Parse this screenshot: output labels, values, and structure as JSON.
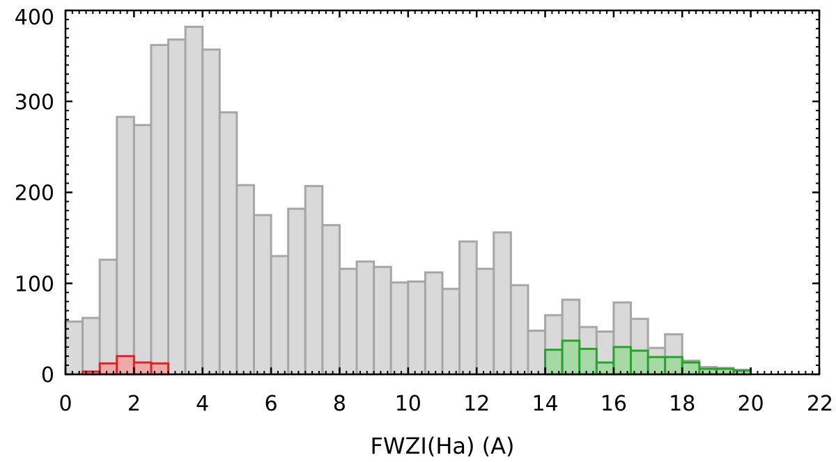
{
  "chart_data": {
    "type": "bar",
    "xlabel": "FWZI(Ha) (A)",
    "ylabel": "",
    "xlim": [
      0,
      22
    ],
    "ylim": [
      0,
      400
    ],
    "xticks": [
      "0",
      "2",
      "4",
      "6",
      "8",
      "10",
      "12",
      "14",
      "16",
      "18",
      "20",
      "22"
    ],
    "yticks": [
      "0",
      "100",
      "200",
      "300",
      "400"
    ],
    "bin_width": 0.5,
    "grid": false,
    "series": [
      {
        "color": "#d9d9d9",
        "edge_color": "#a6a6a6",
        "x": [
          0.0,
          0.5,
          1.0,
          1.5,
          2.0,
          2.5,
          3.0,
          3.5,
          4.0,
          4.5,
          5.0,
          5.5,
          6.0,
          6.5,
          7.0,
          7.5,
          8.0,
          8.5,
          9.0,
          9.5,
          10.0,
          10.5,
          11.0,
          11.5,
          12.0,
          12.5,
          13.0,
          13.5,
          14.0,
          14.5,
          15.0,
          15.5,
          16.0,
          16.5,
          17.0,
          17.5,
          18.0,
          18.5,
          19.0,
          19.5
        ],
        "values": [
          58,
          62,
          126,
          283,
          274,
          362,
          368,
          382,
          357,
          288,
          208,
          175,
          130,
          182,
          207,
          164,
          116,
          124,
          118,
          101,
          102,
          112,
          94,
          146,
          116,
          156,
          98,
          48,
          65,
          82,
          52,
          47,
          79,
          61,
          29,
          44,
          15,
          8,
          7,
          5
        ]
      },
      {
        "color": "#f0a9a9",
        "edge_color": "#d62728",
        "x": [
          0.5,
          1.0,
          1.5,
          2.0,
          2.5
        ],
        "values": [
          3,
          12,
          20,
          13,
          12
        ]
      },
      {
        "color": "#a6d9a6",
        "edge_color": "#2ca02c",
        "x": [
          14.0,
          14.5,
          15.0,
          15.5,
          16.0,
          16.5,
          17.0,
          17.5,
          18.0,
          18.5,
          19.0,
          19.5
        ],
        "values": [
          27,
          37,
          28,
          13,
          30,
          26,
          19,
          19,
          13,
          6,
          6,
          4
        ]
      }
    ]
  }
}
